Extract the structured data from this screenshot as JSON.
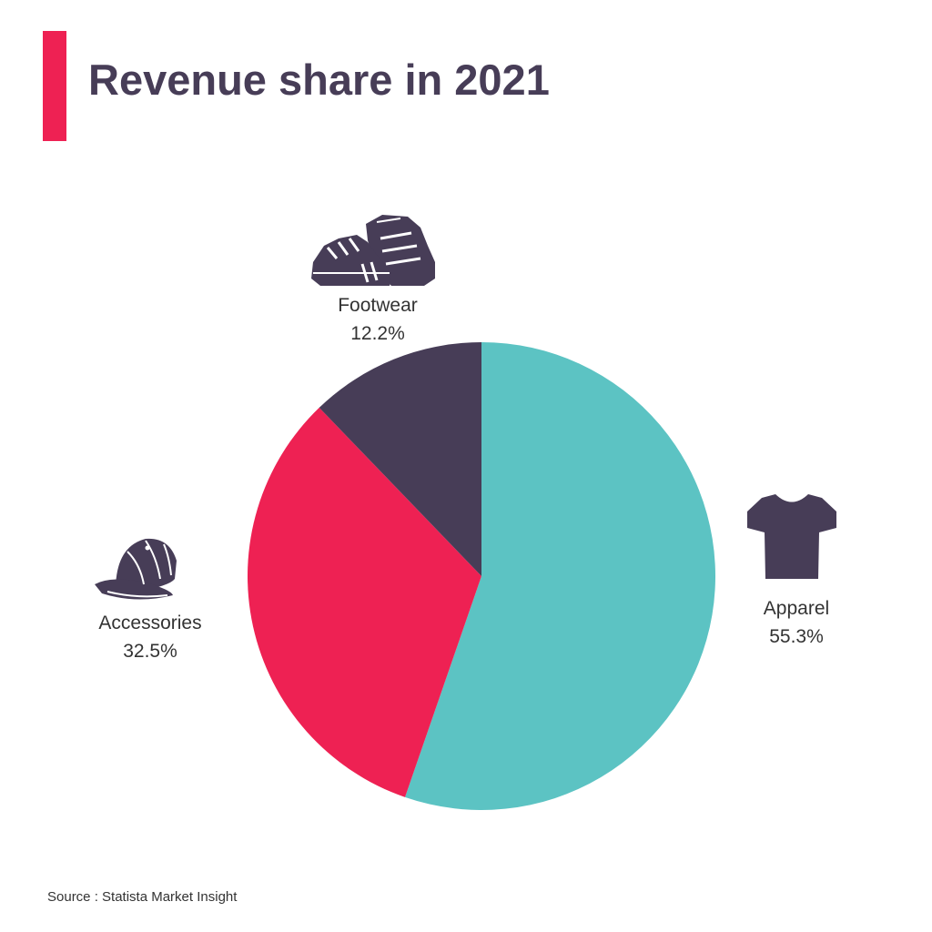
{
  "colors": {
    "accent": "#ee2153",
    "title": "#473d57",
    "label": "#333333"
  },
  "header": {
    "title": "Revenue share in 2021"
  },
  "footer": {
    "source": "Source : Statista Market Insight"
  },
  "chart_data": {
    "type": "pie",
    "title": "Revenue share in 2021",
    "unit": "%",
    "direction": "clockwise",
    "start": "top",
    "slices": [
      {
        "label": "Apparel",
        "value": 55.3,
        "display": "55.3%",
        "color": "#5cc3c3",
        "icon": "t-shirt-icon"
      },
      {
        "label": "Accessories",
        "value": 32.5,
        "display": "32.5%",
        "color": "#ee2153",
        "icon": "cap-icon"
      },
      {
        "label": "Footwear",
        "value": 12.2,
        "display": "12.2%",
        "color": "#473d57",
        "icon": "sneakers-icon"
      }
    ],
    "legend": "none"
  }
}
